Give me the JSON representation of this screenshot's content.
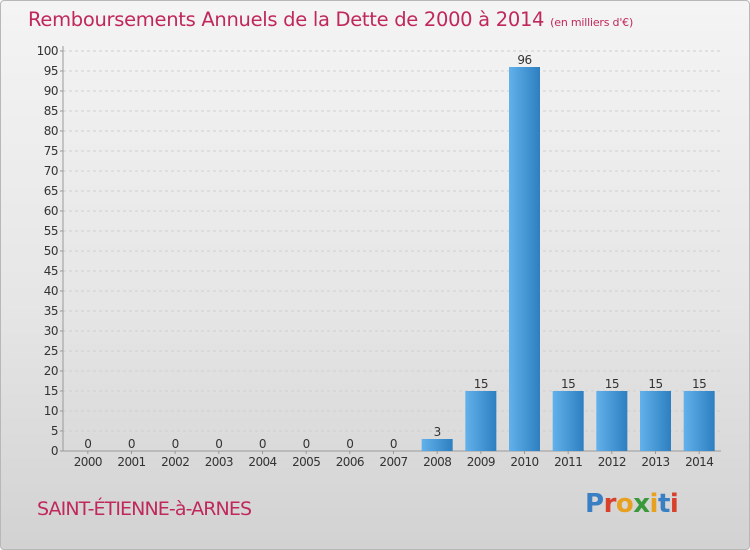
{
  "title": "Remboursements Annuels de la Dette de 2000 à 2014",
  "unit": "(en milliers d'€)",
  "commune": "SAINT-ÉTIENNE-à-ARNES",
  "logo": {
    "text": "Proxiti",
    "letters": [
      {
        "ch": "P",
        "color": "#3a7fc4"
      },
      {
        "ch": "r",
        "color": "#d8402c"
      },
      {
        "ch": "o",
        "color": "#e8a020"
      },
      {
        "ch": "x",
        "color": "#3a9a3a"
      },
      {
        "ch": "i",
        "color": "#e8a020"
      },
      {
        "ch": "t",
        "color": "#3a7fc4"
      },
      {
        "ch": "i",
        "color": "#d8402c"
      }
    ]
  },
  "colors": {
    "bar_light": "#62b1eb",
    "bar_dark": "#2d7fc0",
    "title": "#c0285c",
    "grid": "#cfcfcf"
  },
  "chart_data": {
    "type": "bar",
    "title": "Remboursements Annuels de la Dette de 2000 à 2014",
    "xlabel": "",
    "ylabel": "",
    "categories": [
      "2000",
      "2001",
      "2002",
      "2003",
      "2004",
      "2005",
      "2006",
      "2007",
      "2008",
      "2009",
      "2010",
      "2011",
      "2012",
      "2013",
      "2014"
    ],
    "values": [
      0,
      0,
      0,
      0,
      0,
      0,
      0,
      0,
      3,
      15,
      96,
      15,
      15,
      15,
      15
    ],
    "ylim": [
      0,
      100
    ],
    "yticks": [
      0,
      5,
      10,
      15,
      20,
      25,
      30,
      35,
      40,
      45,
      50,
      55,
      60,
      65,
      70,
      75,
      80,
      85,
      90,
      95,
      100
    ],
    "grid": "horizontal",
    "data_labels": true
  }
}
